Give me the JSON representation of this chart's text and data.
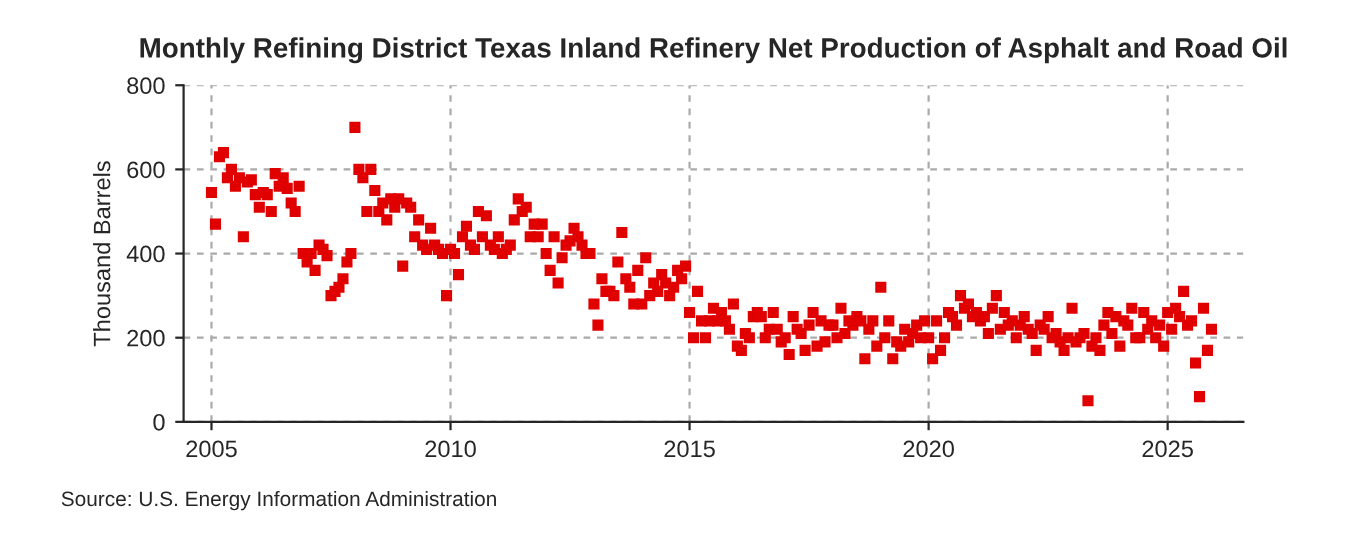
{
  "chart_data": {
    "type": "scatter",
    "title": "Monthly Refining District Texas Inland Refinery Net Production of Asphalt and Road Oil",
    "ylabel": "Thousand Barrels",
    "annotations": [
      "Source: U.S. Energy Information Administration"
    ],
    "x": [
      "2005-01",
      "2005-02",
      "2005-03",
      "2005-04",
      "2005-05",
      "2005-06",
      "2005-07",
      "2005-08",
      "2005-09",
      "2005-10",
      "2005-11",
      "2005-12",
      "2006-01",
      "2006-02",
      "2006-03",
      "2006-04",
      "2006-05",
      "2006-06",
      "2006-07",
      "2006-08",
      "2006-09",
      "2006-10",
      "2006-11",
      "2006-12",
      "2007-01",
      "2007-02",
      "2007-03",
      "2007-04",
      "2007-05",
      "2007-06",
      "2007-07",
      "2007-08",
      "2007-09",
      "2007-10",
      "2007-11",
      "2007-12",
      "2008-01",
      "2008-02",
      "2008-03",
      "2008-04",
      "2008-05",
      "2008-06",
      "2008-07",
      "2008-08",
      "2008-09",
      "2008-10",
      "2008-11",
      "2008-12",
      "2009-01",
      "2009-02",
      "2009-03",
      "2009-04",
      "2009-05",
      "2009-06",
      "2009-07",
      "2009-08",
      "2009-09",
      "2009-10",
      "2009-11",
      "2009-12",
      "2010-01",
      "2010-02",
      "2010-03",
      "2010-04",
      "2010-05",
      "2010-06",
      "2010-07",
      "2010-08",
      "2010-09",
      "2010-10",
      "2010-11",
      "2010-12",
      "2011-01",
      "2011-02",
      "2011-03",
      "2011-04",
      "2011-05",
      "2011-06",
      "2011-07",
      "2011-08",
      "2011-09",
      "2011-10",
      "2011-11",
      "2011-12",
      "2012-01",
      "2012-02",
      "2012-03",
      "2012-04",
      "2012-05",
      "2012-06",
      "2012-07",
      "2012-08",
      "2012-09",
      "2012-10",
      "2012-11",
      "2012-12",
      "2013-01",
      "2013-02",
      "2013-03",
      "2013-04",
      "2013-05",
      "2013-06",
      "2013-07",
      "2013-08",
      "2013-09",
      "2013-10",
      "2013-11",
      "2013-12",
      "2014-01",
      "2014-02",
      "2014-03",
      "2014-04",
      "2014-05",
      "2014-06",
      "2014-07",
      "2014-08",
      "2014-09",
      "2014-10",
      "2014-11",
      "2014-12",
      "2015-01",
      "2015-02",
      "2015-03",
      "2015-04",
      "2015-05",
      "2015-06",
      "2015-07",
      "2015-08",
      "2015-09",
      "2015-10",
      "2015-11",
      "2015-12",
      "2016-01",
      "2016-02",
      "2016-03",
      "2016-04",
      "2016-05",
      "2016-06",
      "2016-07",
      "2016-08",
      "2016-09",
      "2016-10",
      "2016-11",
      "2016-12",
      "2017-01",
      "2017-02",
      "2017-03",
      "2017-04",
      "2017-05",
      "2017-06",
      "2017-07",
      "2017-08",
      "2017-09",
      "2017-10",
      "2017-11",
      "2017-12",
      "2018-01",
      "2018-02",
      "2018-03",
      "2018-04",
      "2018-05",
      "2018-06",
      "2018-07",
      "2018-08",
      "2018-09",
      "2018-10",
      "2018-11",
      "2018-12",
      "2019-01",
      "2019-02",
      "2019-03",
      "2019-04",
      "2019-05",
      "2019-06",
      "2019-07",
      "2019-08",
      "2019-09",
      "2019-10",
      "2019-11",
      "2019-12",
      "2020-01",
      "2020-02",
      "2020-03",
      "2020-04",
      "2020-05",
      "2020-06",
      "2020-07",
      "2020-08",
      "2020-09",
      "2020-10",
      "2020-11",
      "2020-12",
      "2021-01",
      "2021-02",
      "2021-03",
      "2021-04",
      "2021-05",
      "2021-06",
      "2021-07",
      "2021-08",
      "2021-09",
      "2021-10",
      "2021-11",
      "2021-12",
      "2022-01",
      "2022-02",
      "2022-03",
      "2022-04",
      "2022-05",
      "2022-06",
      "2022-07",
      "2022-08",
      "2022-09",
      "2022-10",
      "2022-11",
      "2022-12",
      "2023-01",
      "2023-02",
      "2023-03",
      "2023-04",
      "2023-05",
      "2023-06",
      "2023-07",
      "2023-08",
      "2023-09",
      "2023-10",
      "2023-11",
      "2023-12",
      "2024-01",
      "2024-02",
      "2024-03",
      "2024-04",
      "2024-05",
      "2024-06",
      "2024-07",
      "2024-08",
      "2024-09",
      "2024-10",
      "2024-11",
      "2024-12",
      "2025-01",
      "2025-02",
      "2025-03",
      "2025-04",
      "2025-05",
      "2025-06",
      "2025-07",
      "2025-08",
      "2025-09",
      "2025-10",
      "2025-11",
      "2025-12"
    ],
    "series": [
      {
        "color": "#e00000",
        "values": [
          545,
          470,
          630,
          640,
          580,
          600,
          560,
          580,
          440,
          570,
          575,
          540,
          510,
          545,
          540,
          500,
          590,
          560,
          580,
          555,
          520,
          500,
          560,
          400,
          380,
          400,
          360,
          420,
          410,
          395,
          300,
          310,
          320,
          340,
          380,
          400,
          700,
          600,
          580,
          500,
          600,
          550,
          500,
          520,
          480,
          530,
          510,
          530,
          370,
          520,
          510,
          440,
          480,
          420,
          410,
          460,
          420,
          410,
          400,
          300,
          410,
          400,
          350,
          440,
          465,
          420,
          410,
          500,
          440,
          490,
          420,
          410,
          440,
          400,
          410,
          420,
          480,
          530,
          500,
          510,
          440,
          470,
          440,
          470,
          400,
          360,
          440,
          330,
          390,
          420,
          430,
          460,
          440,
          420,
          400,
          400,
          280,
          230,
          340,
          310,
          310,
          300,
          380,
          450,
          340,
          320,
          280,
          360,
          280,
          390,
          300,
          330,
          310,
          350,
          330,
          300,
          320,
          360,
          340,
          370,
          260,
          200,
          310,
          240,
          200,
          240,
          270,
          240,
          260,
          240,
          220,
          280,
          180,
          170,
          210,
          200,
          250,
          260,
          250,
          200,
          220,
          260,
          220,
          190,
          200,
          160,
          250,
          220,
          210,
          170,
          230,
          260,
          180,
          240,
          190,
          230,
          230,
          200,
          270,
          210,
          240,
          230,
          250,
          240,
          150,
          220,
          240,
          180,
          320,
          200,
          240,
          150,
          190,
          180,
          220,
          190,
          210,
          230,
          200,
          240,
          200,
          150,
          240,
          170,
          200,
          260,
          250,
          230,
          300,
          270,
          280,
          250,
          260,
          240,
          250,
          210,
          270,
          300,
          220,
          260,
          230,
          240,
          200,
          230,
          250,
          220,
          210,
          170,
          230,
          220,
          250,
          200,
          210,
          190,
          170,
          200,
          270,
          190,
          200,
          210,
          50,
          180,
          200,
          170,
          230,
          260,
          210,
          250,
          180,
          240,
          230,
          270,
          200,
          200,
          260,
          220,
          240,
          200,
          230,
          180,
          260,
          220,
          270,
          250,
          310,
          230,
          240,
          140,
          60,
          270,
          170,
          220
        ]
      }
    ],
    "marker": "square",
    "xlim": [
      "2004-06",
      "2026-08"
    ],
    "xticks": [
      "2005",
      "2010",
      "2015",
      "2020",
      "2025"
    ],
    "ylim": [
      0,
      800
    ],
    "yticks": [
      0,
      200,
      400,
      600,
      800
    ],
    "grid": true,
    "legend": false
  }
}
